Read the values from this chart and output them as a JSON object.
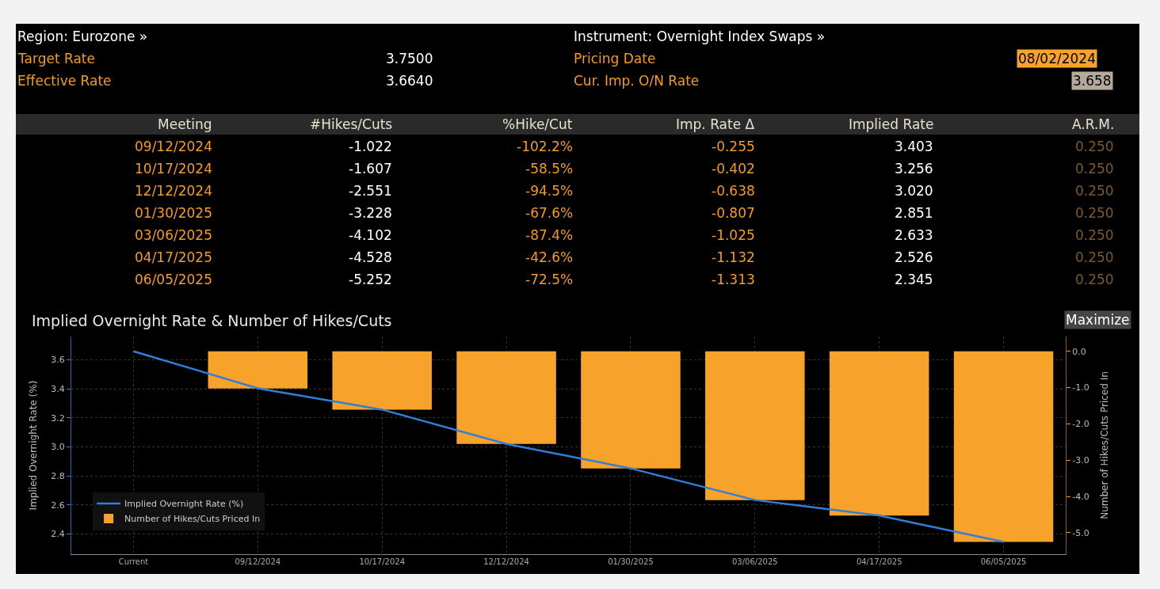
{
  "chart_data": [
    {
      "type": "other",
      "annotations": [
        "Region: Eurozone »",
        "Target Rate",
        "3.7500",
        "Effective Rate",
        "3.6640",
        "Instrument: Overnight Index Swaps »",
        "Pricing Date",
        "08/02/2024",
        "Cur. Imp. O/N Rate",
        "3.658",
        "Meeting",
        "#Hikes/Cuts",
        "%Hike/Cut",
        "Imp. Rate Δ",
        "Implied Rate",
        "A.R.M.",
        "09/12/2024",
        "-1.022",
        "-102.2%",
        "-0.255",
        "3.403",
        "0.250",
        "10/17/2024",
        "-1.607",
        "-58.5%",
        "-0.402",
        "3.256",
        "0.250",
        "12/12/2024",
        "-2.551",
        "-94.5%",
        "-0.638",
        "3.020",
        "0.250",
        "01/30/2025",
        "-3.228",
        "-67.6%",
        "-0.807",
        "2.851",
        "0.250",
        "03/06/2025",
        "-4.102",
        "-87.4%",
        "-1.025",
        "2.633",
        "0.250",
        "04/17/2025",
        "-4.528",
        "-42.6%",
        "-1.132",
        "2.526",
        "0.250",
        "06/05/2025",
        "-5.252",
        "-72.5%",
        "-1.313",
        "2.345",
        "0.250"
      ]
    },
    {
      "type": "bar",
      "title": "Implied Overnight Rate & Number of Hikes/Cuts",
      "ylabel": "Implied Overnight Rate (%)",
      "y2label": "Number of Hikes/Cuts Priced In",
      "categories": [
        "Current",
        "09/12/2024",
        "10/17/2024",
        "12/12/2024",
        "01/30/2025",
        "03/06/2025",
        "04/17/2025",
        "06/05/2025"
      ],
      "series": [
        {
          "name": "Implied Overnight Rate (%)",
          "type": "line",
          "axis": "y",
          "color": "#2f7fd8",
          "values": [
            3.658,
            3.403,
            3.256,
            3.02,
            2.851,
            2.633,
            2.526,
            2.345
          ]
        },
        {
          "name": "Number of Hikes/Cuts Priced In",
          "type": "bar",
          "axis": "y2",
          "color": "#f7a32b",
          "values": [
            0,
            -1.022,
            -1.607,
            -2.551,
            -3.228,
            -4.102,
            -4.528,
            -5.252
          ]
        }
      ],
      "ylim": [
        2.26,
        3.76
      ],
      "yticks": [
        2.4,
        2.6,
        2.8,
        {
          "value": 3.0,
          "label": "3.0"
        },
        3.2,
        3.4,
        3.6
      ],
      "y2lim": [
        -5.59,
        0.41
      ],
      "y2ticks": [
        {
          "value": -5,
          "label": "-5.0"
        },
        {
          "value": -4,
          "label": "-4.0"
        },
        {
          "value": -3,
          "label": "-3.0"
        },
        {
          "value": -2,
          "label": "-2.0"
        },
        {
          "value": -1,
          "label": "-1.0"
        },
        {
          "value": 0,
          "label": "0.0"
        }
      ],
      "grid": true,
      "legend": "bottom left",
      "marker": "none",
      "line_style": "solid",
      "annotations": [
        "Maximize"
      ]
    }
  ]
}
